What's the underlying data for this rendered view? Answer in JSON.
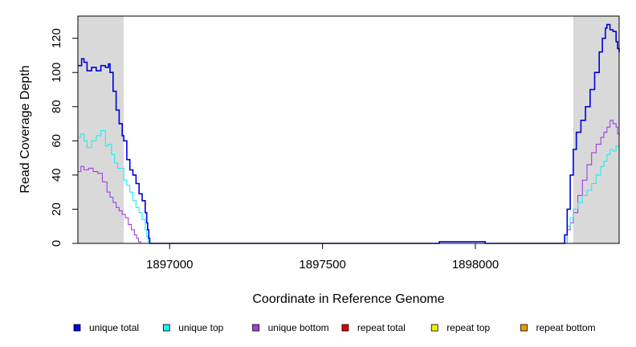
{
  "chart_data": {
    "type": "line",
    "title": "",
    "xlabel": "Coordinate in Reference Genome",
    "ylabel": "Read Coverage Depth",
    "xlim": [
      1896700,
      1898470
    ],
    "ylim": [
      0,
      133
    ],
    "xticks": [
      1897000,
      1897500,
      1898000
    ],
    "xtick_labels": [
      "1897000",
      "1897500",
      "1898000"
    ],
    "yticks": [
      0,
      20,
      40,
      60,
      80,
      100,
      120
    ],
    "ytick_labels": [
      "0",
      "20",
      "40",
      "60",
      "80",
      "100",
      "120"
    ],
    "shaded_regions": [
      {
        "x": [
          1896700,
          1896850
        ],
        "color": "#d9d9d9"
      },
      {
        "x": [
          1898320,
          1898470
        ],
        "color": "#d9d9d9"
      }
    ],
    "grid": false,
    "legend_position": "bottom",
    "series": [
      {
        "name": "unique total",
        "color": "#0000dd",
        "x": [
          1896700,
          1896712,
          1896720,
          1896730,
          1896745,
          1896760,
          1896775,
          1896790,
          1896800,
          1896805,
          1896815,
          1896825,
          1896835,
          1896845,
          1896850,
          1896860,
          1896870,
          1896880,
          1896890,
          1896900,
          1896910,
          1896920,
          1896925,
          1896928,
          1896932,
          1896935,
          1896950,
          1897300,
          1897880,
          1897882,
          1898030,
          1898032,
          1898290,
          1898292,
          1898300,
          1898310,
          1898320,
          1898330,
          1898345,
          1898360,
          1898375,
          1898390,
          1898405,
          1898415,
          1898425,
          1898430,
          1898440,
          1898450,
          1898460,
          1898465,
          1898470
        ],
        "y": [
          104,
          108,
          106,
          101,
          103,
          101,
          104,
          103,
          105,
          100,
          89,
          78,
          70,
          63,
          60,
          49,
          43,
          40,
          35,
          29,
          25,
          18,
          12,
          8,
          3,
          0,
          0,
          0,
          0,
          1,
          1,
          0,
          0,
          5,
          20,
          40,
          55,
          65,
          72,
          80,
          90,
          100,
          112,
          120,
          126,
          128,
          125,
          124,
          118,
          114,
          112
        ]
      },
      {
        "name": "unique top",
        "color": "#22eeee",
        "x": [
          1896700,
          1896710,
          1896720,
          1896730,
          1896745,
          1896760,
          1896775,
          1896790,
          1896800,
          1896810,
          1896820,
          1896830,
          1896840,
          1896850,
          1896860,
          1896870,
          1896880,
          1896890,
          1896900,
          1896910,
          1896920,
          1896925,
          1896930,
          1896935,
          1897300,
          1898290,
          1898300,
          1898310,
          1898320,
          1898335,
          1898350,
          1898365,
          1898380,
          1898395,
          1898410,
          1898420,
          1898430,
          1898440,
          1898450,
          1898460,
          1898470
        ],
        "y": [
          62,
          64,
          60,
          56,
          60,
          63,
          66,
          57,
          58,
          52,
          47,
          44,
          44,
          37,
          34,
          30,
          25,
          21,
          18,
          14,
          8,
          4,
          1,
          0,
          0,
          0,
          10,
          15,
          20,
          24,
          28,
          31,
          35,
          40,
          45,
          48,
          52,
          55,
          54,
          57,
          56
        ]
      },
      {
        "name": "unique bottom",
        "color": "#a040e0",
        "x": [
          1896700,
          1896710,
          1896720,
          1896735,
          1896750,
          1896765,
          1896780,
          1896795,
          1896805,
          1896815,
          1896825,
          1896835,
          1896845,
          1896855,
          1896865,
          1896875,
          1896885,
          1896892,
          1896898,
          1896905,
          1897300,
          1898290,
          1898300,
          1898310,
          1898320,
          1898335,
          1898350,
          1898365,
          1898380,
          1898395,
          1898410,
          1898420,
          1898430,
          1898440,
          1898450,
          1898460,
          1898465,
          1898470
        ],
        "y": [
          42,
          45,
          43,
          44,
          42,
          41,
          36,
          30,
          27,
          24,
          21,
          19,
          17,
          15,
          11,
          8,
          5,
          3,
          1,
          0,
          0,
          0,
          8,
          12,
          18,
          28,
          37,
          46,
          53,
          58,
          62,
          65,
          68,
          72,
          70,
          68,
          64,
          62
        ]
      },
      {
        "name": "repeat total",
        "color": "#dd0000",
        "x": [
          1896700,
          1898470
        ],
        "y": [
          0,
          0
        ]
      },
      {
        "name": "repeat top",
        "color": "#eeee00",
        "x": [
          1896700,
          1898470
        ],
        "y": [
          0,
          0
        ]
      },
      {
        "name": "repeat bottom",
        "color": "#ee9900",
        "x": [
          1896700,
          1898470
        ],
        "y": [
          0,
          0
        ]
      }
    ]
  }
}
